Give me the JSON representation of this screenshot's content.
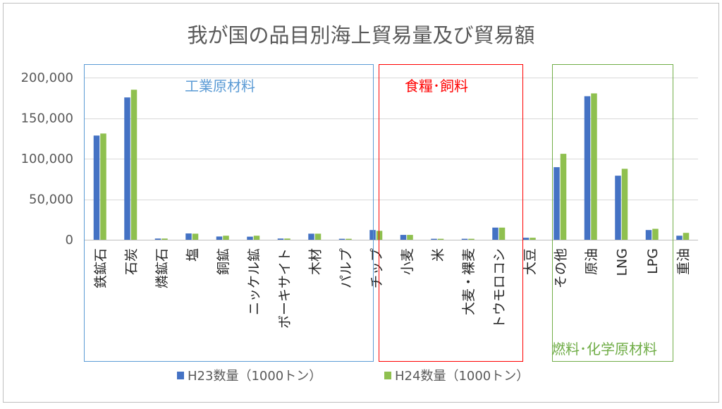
{
  "colors": {
    "series1": "#4472C4",
    "series2": "#8FC04F",
    "gridline": "#D9D9D9",
    "axis": "#BFBFBF",
    "frame": "#BFBFBF",
    "group_industrial": "#5B9BD5",
    "group_food": "#FF0000",
    "group_fuel": "#70AD47"
  },
  "groups": {
    "industrial": "工業原材料",
    "food": "食糧･飼料",
    "fuel": "燃料･化学原材料"
  },
  "chart_data": {
    "type": "bar",
    "title": "我が国の品目別海上貿易量及び貿易額",
    "xlabel": "",
    "ylabel": "",
    "ylim": [
      0,
      200000
    ],
    "yticks": [
      0,
      50000,
      100000,
      150000,
      200000
    ],
    "ytick_labels": [
      "0",
      "50,000",
      "100,000",
      "150,000",
      "200,000"
    ],
    "grid": true,
    "legend": "bottom",
    "categories": [
      "鉄鉱石",
      "石炭",
      "燐鉱石",
      "塩",
      "銅鉱",
      "ニッケル鉱",
      "ボーキサイト",
      "木材",
      "パルプ",
      "チップ",
      "小麦",
      "米",
      "大麦・裸麦",
      "トウモロコシ",
      "大豆",
      "その他",
      "原油",
      "LNG",
      "LPG",
      "重油"
    ],
    "series": [
      {
        "name": "H23数量（1000トン）",
        "values": [
          128500,
          175500,
          1500,
          7800,
          4000,
          3800,
          1500,
          7500,
          1200,
          12000,
          6000,
          1200,
          1200,
          15000,
          2500,
          89500,
          177000,
          79000,
          12000,
          5000
        ]
      },
      {
        "name": "H24数量（1000トン）",
        "values": [
          131000,
          185000,
          1500,
          7500,
          5000,
          5000,
          1500,
          7500,
          1200,
          11000,
          6000,
          1200,
          1200,
          15000,
          2500,
          106000,
          180500,
          87500,
          13500,
          8500
        ]
      }
    ]
  }
}
